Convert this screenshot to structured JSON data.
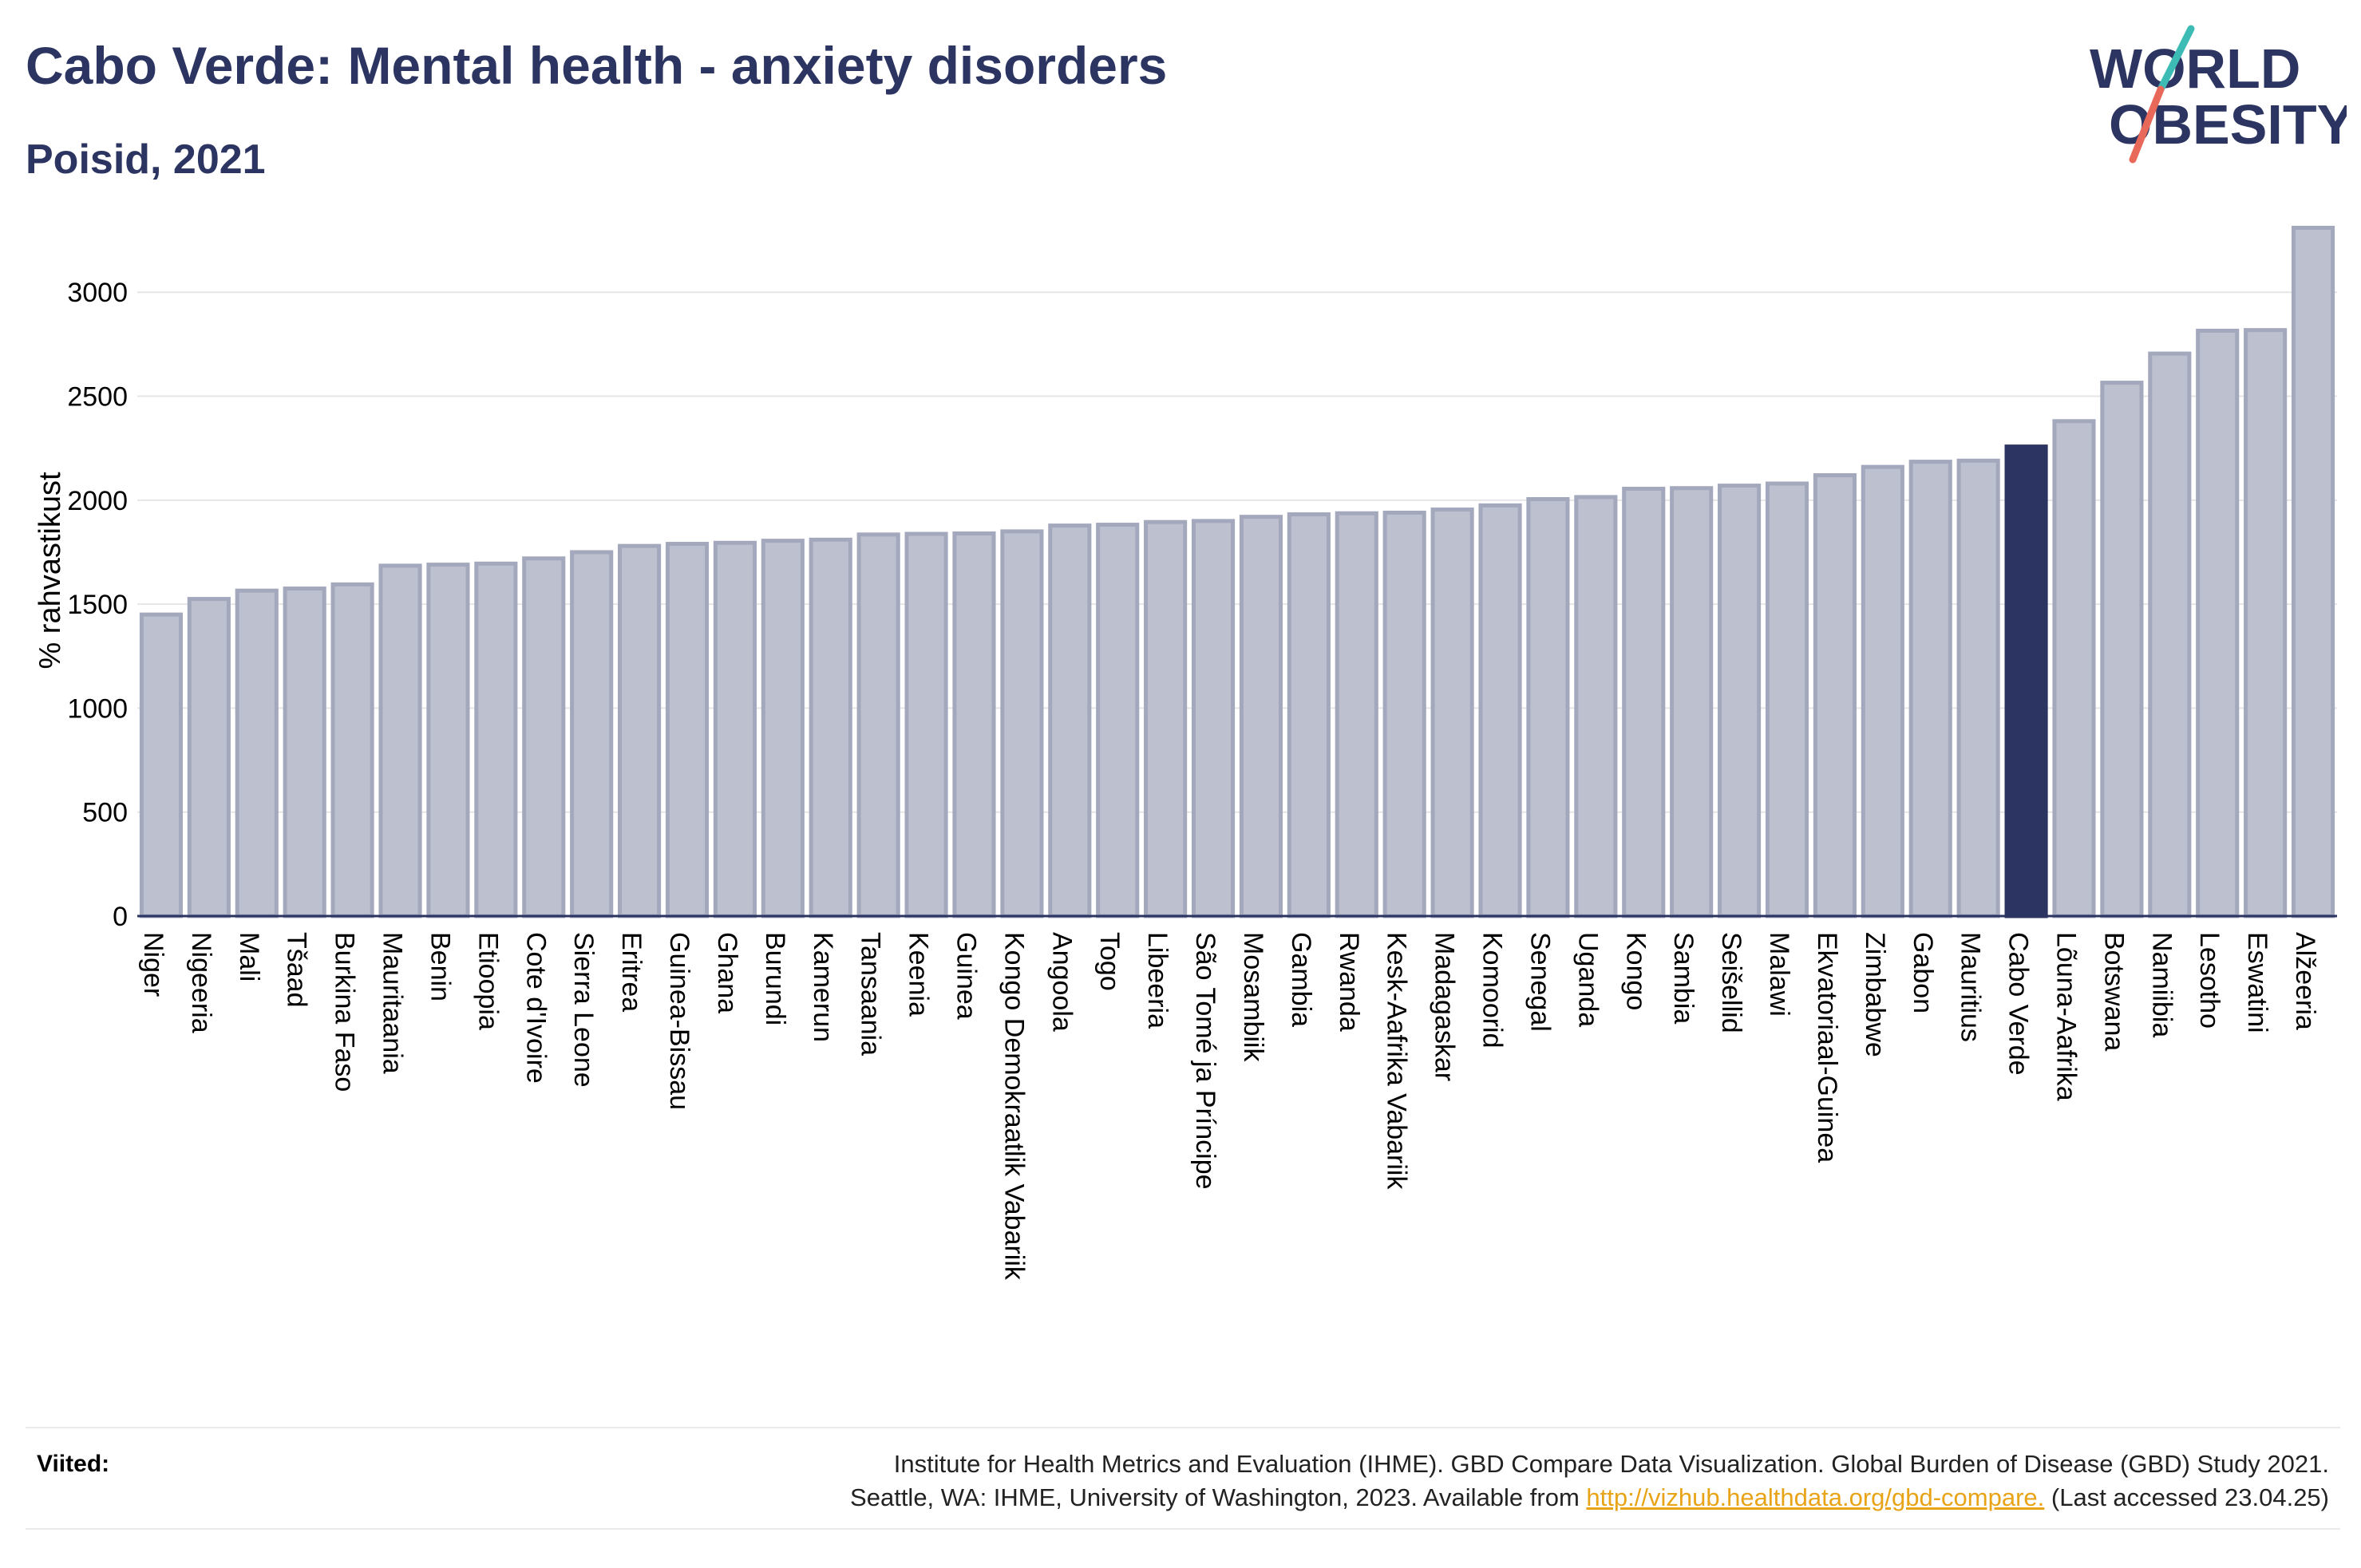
{
  "header": {
    "title": "Cabo Verde: Mental health - anxiety disorders",
    "subtitle": "Poisid, 2021"
  },
  "logo": {
    "line1": "WORLD",
    "line2": "OBESITY"
  },
  "colors": {
    "bar": "#bcc0cf",
    "bar_stroke": "#a3a8bd",
    "highlight": "#2c3561",
    "text": "#2c3561",
    "grid": "#e6e6e6",
    "logo_slash_teal": "#3cbcb4",
    "logo_slash_red": "#e8685a"
  },
  "chart_data": {
    "type": "bar",
    "ylabel": "% rahvastikust",
    "ylim": [
      0,
      3400
    ],
    "yticks": [
      0,
      500,
      1000,
      1500,
      2000,
      2500,
      3000
    ],
    "grid": true,
    "highlight": "Cabo Verde",
    "categories": [
      "Niger",
      "Nigeeria",
      "Mali",
      "Tšaad",
      "Burkina Faso",
      "Mauritaania",
      "Benin",
      "Etioopia",
      "Cote d'Ivoire",
      "Sierra Leone",
      "Eritrea",
      "Guinea-Bissau",
      "Ghana",
      "Burundi",
      "Kamerun",
      "Tansaania",
      "Keenia",
      "Guinea",
      "Kongo Demokraatlik Vabariik",
      "Angoola",
      "Togo",
      "Libeeria",
      "São Tomé ja Príncipe",
      "Mosambiik",
      "Gambia",
      "Rwanda",
      "Kesk-Aafrika Vabariik",
      "Madagaskar",
      "Komoorid",
      "Senegal",
      "Uganda",
      "Kongo",
      "Sambia",
      "Seišellid",
      "Malawi",
      "Ekvatoriaal-Guinea",
      "Zimbabwe",
      "Gabon",
      "Mauritius",
      "Cabo Verde",
      "Lõuna-Aafrika",
      "Botswana",
      "Namiibia",
      "Lesotho",
      "Eswatini",
      "Alžeeria"
    ],
    "values": [
      1450,
      1525,
      1565,
      1575,
      1595,
      1685,
      1690,
      1695,
      1720,
      1750,
      1780,
      1790,
      1795,
      1805,
      1810,
      1835,
      1838,
      1840,
      1850,
      1878,
      1882,
      1895,
      1900,
      1920,
      1932,
      1937,
      1940,
      1955,
      1975,
      2005,
      2015,
      2055,
      2058,
      2070,
      2080,
      2120,
      2160,
      2185,
      2190,
      2258,
      2380,
      2565,
      2705,
      2815,
      2818,
      3310
    ]
  },
  "footer": {
    "label": "Viited:",
    "line1": "Institute for Health Metrics and Evaluation (IHME). GBD Compare Data Visualization. Global Burden of Disease (GBD) Study 2021.",
    "line2_pre": "Seattle, WA: IHME, University of Washington, 2023. Available from ",
    "link": "http://vizhub.healthdata.org/gbd-compare.",
    "line2_post": " (Last accessed 23.04.25)"
  }
}
